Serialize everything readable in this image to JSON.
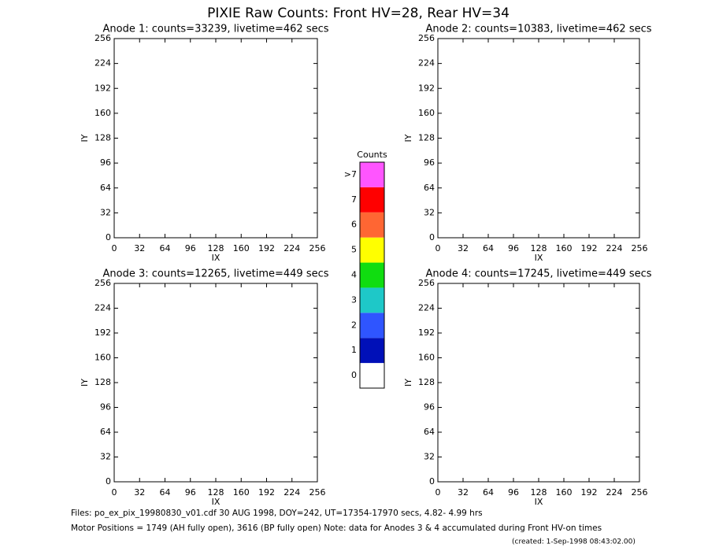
{
  "title": "PIXIE Raw Counts:  Front HV=28, Rear HV=34",
  "chart_data": [
    {
      "type": "heatmap",
      "title": "Anode 1: counts=33239, livetime=462 secs",
      "xlabel": "IX",
      "ylabel": "IY",
      "xlim": [
        0,
        256
      ],
      "ylim": [
        0,
        256
      ],
      "xticks": [
        0,
        32,
        64,
        96,
        128,
        160,
        192,
        224,
        256
      ],
      "yticks": [
        0,
        32,
        64,
        96,
        128,
        160,
        192,
        224,
        256
      ]
    },
    {
      "type": "heatmap",
      "title": "Anode 2: counts=10383, livetime=462 secs",
      "xlabel": "IX",
      "ylabel": "IY",
      "xlim": [
        0,
        256
      ],
      "ylim": [
        0,
        256
      ],
      "xticks": [
        0,
        32,
        64,
        96,
        128,
        160,
        192,
        224,
        256
      ],
      "yticks": [
        0,
        32,
        64,
        96,
        128,
        160,
        192,
        224,
        256
      ]
    },
    {
      "type": "heatmap",
      "title": "Anode 3: counts=12265, livetime=449 secs",
      "xlabel": "IX",
      "ylabel": "IY",
      "xlim": [
        0,
        256
      ],
      "ylim": [
        0,
        256
      ],
      "xticks": [
        0,
        32,
        64,
        96,
        128,
        160,
        192,
        224,
        256
      ],
      "yticks": [
        0,
        32,
        64,
        96,
        128,
        160,
        192,
        224,
        256
      ]
    },
    {
      "type": "heatmap",
      "title": "Anode 4: counts=17245, livetime=449 secs",
      "xlabel": "IX",
      "ylabel": "IY",
      "xlim": [
        0,
        256
      ],
      "ylim": [
        0,
        256
      ],
      "xticks": [
        0,
        32,
        64,
        96,
        128,
        160,
        192,
        224,
        256
      ],
      "yticks": [
        0,
        32,
        64,
        96,
        128,
        160,
        192,
        224,
        256
      ]
    },
    {
      "type": "colorbar",
      "title": "Counts",
      "categories": [
        "0",
        "1",
        "2",
        "3",
        "4",
        "5",
        "6",
        "7",
        ">7"
      ],
      "colors": [
        "#ffffff",
        "#0010b8",
        "#2f55ff",
        "#1ec8c8",
        "#10dd10",
        "#ffff00",
        "#ff6633",
        "#ff0000",
        "#ff55ff"
      ]
    }
  ],
  "notes": [
    "Files: po_ex_pix_19980830_v01.cdf    30 AUG 1998, DOY=242, UT=17354-17970 secs,  4.82- 4.99 hrs",
    "Motor Positions = 1749 (AH fully open), 3616 (BP fully open)    Note: data for Anodes 3 & 4 accumulated during Front HV-on times",
    "(created:  1-Sep-1998 08:43:02.00)"
  ]
}
